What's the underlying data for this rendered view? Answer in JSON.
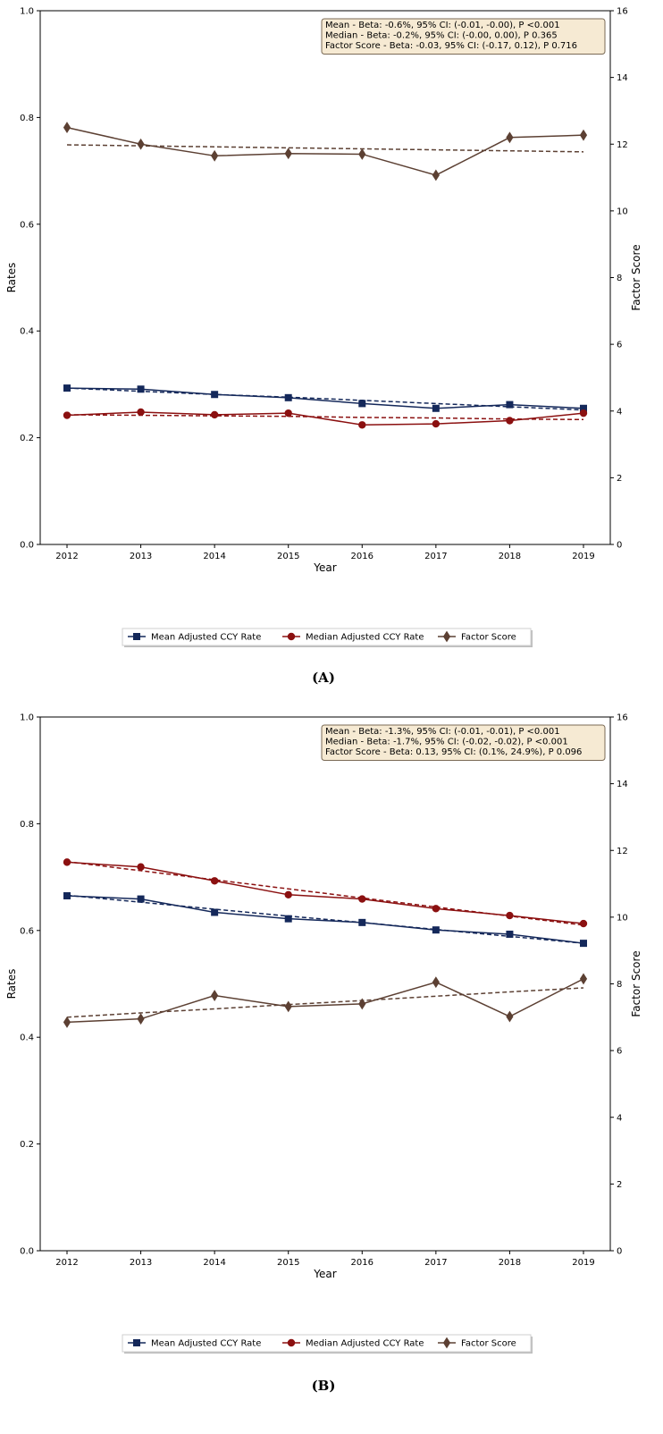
{
  "chart_data": [
    {
      "type": "line",
      "panel_label": "(A)",
      "xlabel": "Year",
      "ylabel": "Rates",
      "y2label": "Factor Score",
      "x": [
        2012,
        2013,
        2014,
        2015,
        2016,
        2017,
        2018,
        2019
      ],
      "ylim": [
        0,
        1.0
      ],
      "y2lim": [
        0,
        16
      ],
      "yticks": [
        "0.0",
        "0.2",
        "0.4",
        "0.6",
        "0.8",
        "1.0"
      ],
      "y2ticks": [
        "0",
        "2",
        "4",
        "6",
        "8",
        "10",
        "12",
        "14",
        "16"
      ],
      "grid": false,
      "legend_position": "bottom-center",
      "series": [
        {
          "name": "Mean Adjusted CCY Rate",
          "axis": "left",
          "marker": "square",
          "color": "#14285a",
          "values": [
            0.293,
            0.291,
            0.281,
            0.275,
            0.264,
            0.255,
            0.262,
            0.255
          ],
          "trend": [
            0.293,
            0.287,
            0.281,
            0.276,
            0.27,
            0.264,
            0.258,
            0.252
          ]
        },
        {
          "name": "Median Adjusted CCY Rate",
          "axis": "left",
          "marker": "circle",
          "color": "#8b1010",
          "values": [
            0.242,
            0.248,
            0.243,
            0.246,
            0.224,
            0.226,
            0.232,
            0.246
          ],
          "trend": [
            0.243,
            0.242,
            0.241,
            0.24,
            0.238,
            0.237,
            0.235,
            0.234
          ]
        },
        {
          "name": "Factor Score",
          "axis": "right",
          "marker": "diamond",
          "color": "#5c4033",
          "values": [
            12.5,
            12.0,
            11.65,
            11.72,
            11.7,
            11.07,
            12.2,
            12.27
          ],
          "trend": [
            11.98,
            11.95,
            11.92,
            11.89,
            11.86,
            11.83,
            11.8,
            11.77
          ]
        }
      ],
      "annotation": [
        "Mean - Beta: -0.6%, 95% CI: (-0.01, -0.00), P <0.001",
        "Median - Beta: -0.2%, 95% CI: (-0.00, 0.00), P 0.365",
        "Factor Score - Beta: -0.03, 95% CI: (-0.17, 0.12), P 0.716"
      ]
    },
    {
      "type": "line",
      "panel_label": "(B)",
      "xlabel": "Year",
      "ylabel": "Rates",
      "y2label": "Factor Score",
      "x": [
        2012,
        2013,
        2014,
        2015,
        2016,
        2017,
        2018,
        2019
      ],
      "ylim": [
        0,
        1.0
      ],
      "y2lim": [
        0,
        16
      ],
      "yticks": [
        "0.0",
        "0.2",
        "0.4",
        "0.6",
        "0.8",
        "1.0"
      ],
      "y2ticks": [
        "0",
        "2",
        "4",
        "6",
        "8",
        "10",
        "12",
        "14",
        "16"
      ],
      "grid": false,
      "legend_position": "bottom-center",
      "series": [
        {
          "name": "Mean Adjusted CCY Rate",
          "axis": "left",
          "marker": "square",
          "color": "#14285a",
          "values": [
            0.665,
            0.659,
            0.634,
            0.622,
            0.615,
            0.601,
            0.593,
            0.576
          ],
          "trend": [
            0.666,
            0.653,
            0.64,
            0.627,
            0.615,
            0.602,
            0.589,
            0.576
          ]
        },
        {
          "name": "Median Adjusted CCY Rate",
          "axis": "left",
          "marker": "circle",
          "color": "#8b1010",
          "values": [
            0.728,
            0.719,
            0.693,
            0.667,
            0.659,
            0.641,
            0.628,
            0.613
          ],
          "trend": [
            0.729,
            0.712,
            0.695,
            0.678,
            0.661,
            0.644,
            0.627,
            0.61
          ]
        },
        {
          "name": "Factor Score",
          "axis": "right",
          "marker": "diamond",
          "color": "#5c4033",
          "values": [
            6.85,
            6.95,
            7.65,
            7.32,
            7.4,
            8.05,
            7.02,
            8.15
          ],
          "trend": [
            7.0,
            7.13,
            7.25,
            7.38,
            7.5,
            7.63,
            7.76,
            7.88
          ]
        }
      ],
      "annotation": [
        "Mean - Beta: -1.3%, 95% CI: (-0.01, -0.01), P <0.001",
        "Median - Beta: -1.7%, 95% CI: (-0.02, -0.02), P <0.001",
        "Factor Score - Beta: 0.13, 95% CI: (0.1%, 24.9%), P 0.096"
      ]
    }
  ]
}
